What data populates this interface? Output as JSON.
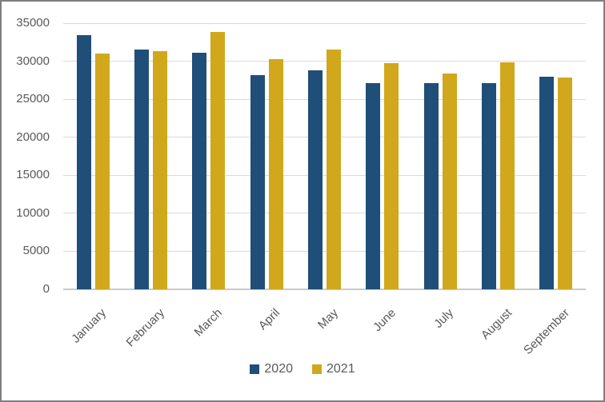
{
  "chart_data": {
    "type": "bar",
    "title": "",
    "xlabel": "",
    "ylabel": "",
    "categories": [
      "January",
      "February",
      "March",
      "April",
      "May",
      "June",
      "July",
      "August",
      "September"
    ],
    "series": [
      {
        "name": "2020",
        "color": "#1F4E79",
        "values": [
          33400,
          31500,
          31100,
          28200,
          28800,
          27100,
          27100,
          27100,
          28000
        ]
      },
      {
        "name": "2021",
        "color": "#D1A81C",
        "values": [
          31000,
          31300,
          33800,
          30300,
          31500,
          29700,
          28400,
          29900,
          27900
        ]
      }
    ],
    "ylim": [
      0,
      35000
    ],
    "ytick_step": 5000,
    "ytick_labels": [
      "0",
      "5000",
      "10000",
      "15000",
      "20000",
      "25000",
      "30000",
      "35000"
    ],
    "grid": true,
    "legend_position": "bottom"
  },
  "styles": {
    "text_color": "#595959",
    "gridline_color": "#D9D9D9",
    "axis_line_color": "#C9C9C9",
    "frame_border_color": "#7F7F7F",
    "background_color": "#FFFFFF"
  }
}
